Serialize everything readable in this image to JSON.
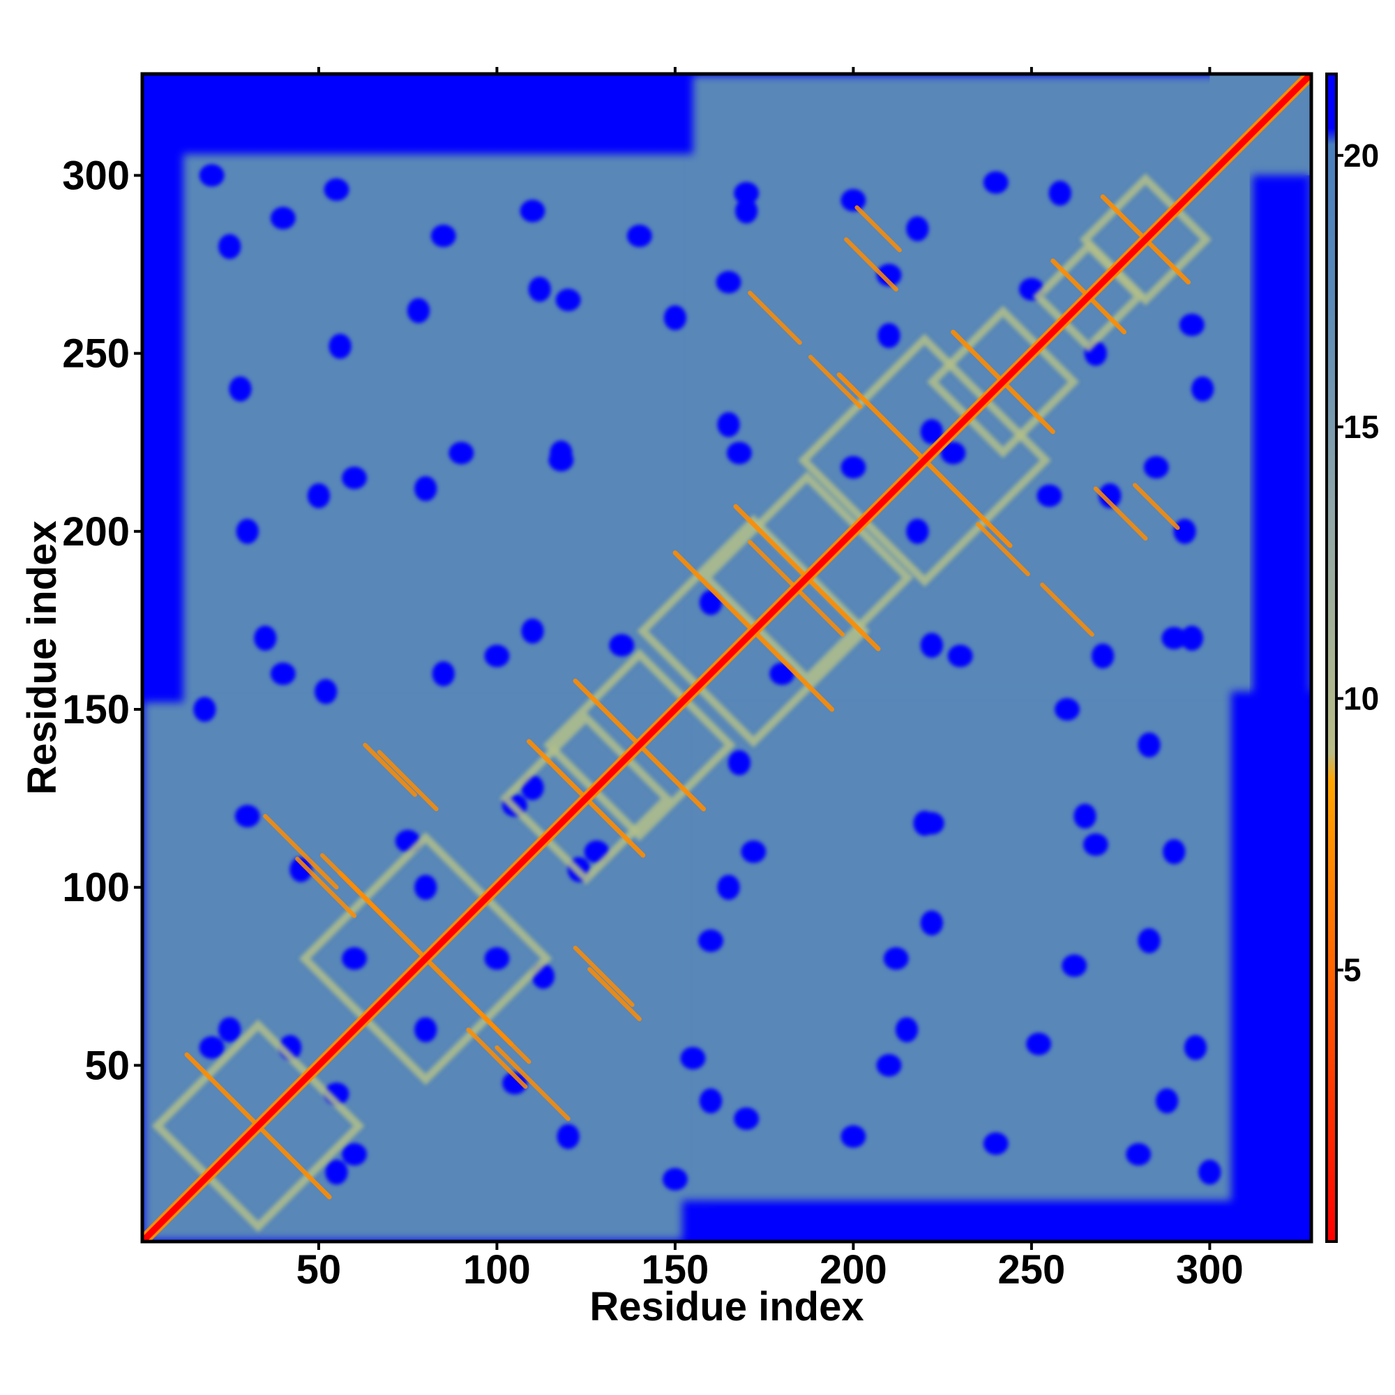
{
  "chart_data": {
    "type": "heatmap",
    "title": "",
    "xlabel": "Residue index",
    "ylabel": "Residue index",
    "xlim": [
      1,
      328
    ],
    "ylim": [
      1,
      328
    ],
    "x_ticks": [
      50,
      100,
      150,
      200,
      250,
      300
    ],
    "y_ticks": [
      50,
      100,
      150,
      200,
      250,
      300
    ],
    "x_tick_labels": [
      "50",
      "100",
      "150",
      "200",
      "250",
      "300"
    ],
    "y_tick_labels": [
      "50",
      "100",
      "150",
      "200",
      "250",
      "300"
    ],
    "colorbar": {
      "range": [
        0,
        21.5
      ],
      "ticks": [
        5,
        10,
        15,
        20
      ],
      "tick_labels": [
        "5",
        "10",
        "15",
        "20"
      ],
      "color_stops": [
        {
          "value": 0,
          "color": "#ff0000"
        },
        {
          "value": 4.5,
          "color": "#ff5a00"
        },
        {
          "value": 8.5,
          "color": "#ffa500"
        },
        {
          "value": 9.0,
          "color": "#b9bc86"
        },
        {
          "value": 13.5,
          "color": "#8fa6a8"
        },
        {
          "value": 17.5,
          "color": "#5888b8"
        },
        {
          "value": 20.2,
          "color": "#4a7fbe"
        },
        {
          "value": 20.5,
          "color": "#0000ff"
        },
        {
          "value": 21.5,
          "color": "#0000ff"
        }
      ]
    },
    "colors": {
      "far": "#0000ff",
      "background_region": "#5887b8",
      "contact_ring": "#b3c08a",
      "strand_pairing": "#ff8c00",
      "diagonal": "#ff0000"
    },
    "protein_region": {
      "start": 12,
      "end": 306
    },
    "domain_1": {
      "start": 1,
      "end": 152
    },
    "domain_2": {
      "start": 155,
      "end": 328
    },
    "diagonal_crossings": [
      {
        "center": 33,
        "halfwidth": 20
      },
      {
        "center": 80,
        "halfwidth": 24
      },
      {
        "center": 125,
        "halfwidth": 16
      },
      {
        "center": 140,
        "halfwidth": 18
      },
      {
        "center": 172,
        "halfwidth": 22
      },
      {
        "center": 187,
        "halfwidth": 20
      },
      {
        "center": 220,
        "halfwidth": 24
      },
      {
        "center": 242,
        "halfwidth": 14
      },
      {
        "center": 266,
        "halfwidth": 10
      },
      {
        "center": 282,
        "halfwidth": 12
      }
    ],
    "offdiagonal_contacts": [
      {
        "x": 45,
        "y": 110,
        "len": 20
      },
      {
        "x": 60,
        "y": 100,
        "len": 18
      },
      {
        "x": 100,
        "y": 52,
        "len": 16
      },
      {
        "x": 130,
        "y": 75,
        "len": 16
      },
      {
        "x": 70,
        "y": 133,
        "len": 14
      },
      {
        "x": 178,
        "y": 260,
        "len": 14
      },
      {
        "x": 205,
        "y": 275,
        "len": 14
      },
      {
        "x": 242,
        "y": 195,
        "len": 14
      },
      {
        "x": 285,
        "y": 207,
        "len": 12
      },
      {
        "x": 178,
        "y": 190,
        "len": 14
      }
    ],
    "blue_holes": [
      [
        20,
        300
      ],
      [
        40,
        288
      ],
      [
        55,
        296
      ],
      [
        85,
        283
      ],
      [
        110,
        290
      ],
      [
        140,
        283
      ],
      [
        170,
        295
      ],
      [
        200,
        293
      ],
      [
        240,
        298
      ],
      [
        120,
        265
      ],
      [
        165,
        270
      ],
      [
        210,
        272
      ],
      [
        250,
        268
      ],
      [
        295,
        258
      ],
      [
        60,
        215
      ],
      [
        90,
        222
      ],
      [
        118,
        220
      ],
      [
        168,
        222
      ],
      [
        200,
        218
      ],
      [
        228,
        222
      ],
      [
        255,
        210
      ],
      [
        285,
        218
      ],
      [
        40,
        160
      ],
      [
        100,
        165
      ],
      [
        135,
        168
      ],
      [
        180,
        160
      ],
      [
        230,
        165
      ],
      [
        260,
        150
      ],
      [
        290,
        170
      ],
      [
        30,
        120
      ],
      [
        75,
        113
      ],
      [
        105,
        123
      ],
      [
        128,
        110
      ],
      [
        172,
        110
      ],
      [
        222,
        118
      ],
      [
        268,
        112
      ],
      [
        60,
        80
      ],
      [
        100,
        80
      ],
      [
        160,
        85
      ],
      [
        212,
        80
      ],
      [
        262,
        78
      ],
      [
        20,
        55
      ],
      [
        55,
        42
      ],
      [
        105,
        45
      ],
      [
        155,
        52
      ],
      [
        210,
        50
      ],
      [
        252,
        56
      ],
      [
        170,
        35
      ],
      [
        200,
        30
      ],
      [
        240,
        28
      ],
      [
        280,
        25
      ],
      [
        150,
        18
      ],
      [
        60,
        25
      ]
    ]
  }
}
